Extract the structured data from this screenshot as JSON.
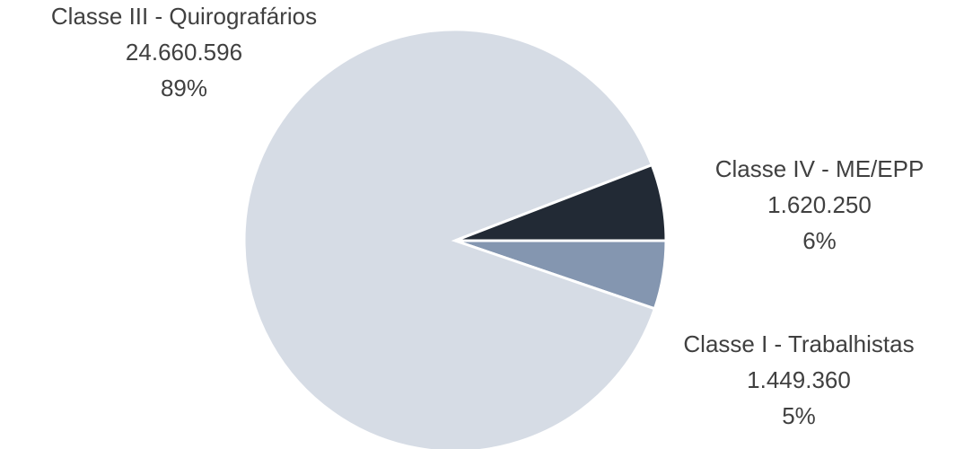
{
  "chart_data": {
    "type": "pie",
    "categories": [
      "Classe I - Trabalhistas",
      "Classe III - Quirografários",
      "Classe IV - ME/EPP"
    ],
    "values": [
      1449360,
      24660596,
      1620250
    ],
    "value_labels": [
      "1.449.360",
      "24.660.596",
      "1.620.250"
    ],
    "percent_labels": [
      "5%",
      "89%",
      "6%"
    ],
    "colors": [
      "#8496b0",
      "#d6dce5",
      "#222a35"
    ]
  }
}
